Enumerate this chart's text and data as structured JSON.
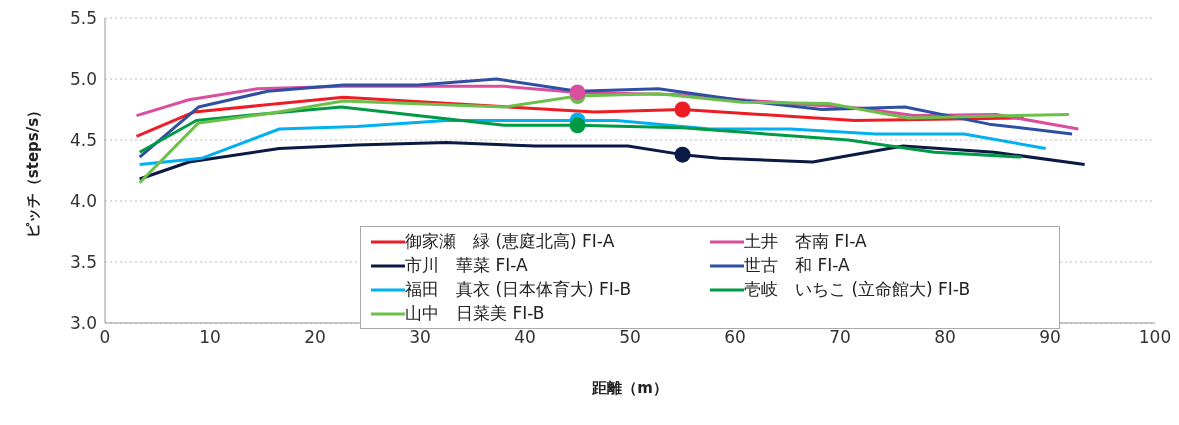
{
  "chart_data": {
    "type": "line",
    "xlabel": "距離（m）",
    "ylabel": "ピッチ（steps/s）",
    "xlim": [
      0,
      100
    ],
    "xticks": [
      0,
      10,
      20,
      30,
      40,
      50,
      60,
      70,
      80,
      90,
      100
    ],
    "ylim": [
      3,
      5.5
    ],
    "yticks": [
      {
        "value": 3,
        "label": "3.0"
      },
      {
        "value": 3.5,
        "label": "3.5"
      },
      {
        "value": 4,
        "label": "4.0"
      },
      {
        "value": 4.5,
        "label": "4.5"
      },
      {
        "value": 5,
        "label": "5.0"
      },
      {
        "value": 5.5,
        "label": "5.5"
      }
    ],
    "grid": "y",
    "legend": "bottom",
    "marker": "none",
    "line_style": "solid",
    "series": [
      {
        "name": "御家瀬　緑 (恵庭北高) FI-A",
        "color": "#ee1c25",
        "x": [
          3,
          8.5,
          22.7,
          46.6,
          55,
          71.4,
          87.5
        ],
        "values": [
          4.53,
          4.73,
          4.85,
          4.73,
          4.75,
          4.66,
          4.68
        ]
      },
      {
        "name": "土井　杏南 FI-A",
        "color": "#d94fa0",
        "x": [
          3,
          8,
          14.5,
          22.7,
          38,
          45,
          55,
          62,
          72,
          77,
          84.9,
          92.7
        ],
        "values": [
          4.7,
          4.83,
          4.92,
          4.94,
          4.94,
          4.89,
          4.87,
          4.82,
          4.76,
          4.7,
          4.71,
          4.59
        ]
      },
      {
        "name": "市川　華菜 FI-A",
        "color": "#0b1a45",
        "x": [
          3.3,
          8,
          16.6,
          24,
          32.5,
          41,
          49.8,
          55,
          58.5,
          67.4,
          76,
          84.7,
          93.3
        ],
        "values": [
          4.18,
          4.32,
          4.43,
          4.46,
          4.48,
          4.45,
          4.45,
          4.38,
          4.35,
          4.32,
          4.45,
          4.4,
          4.3
        ]
      },
      {
        "name": "世古　和 FI-A",
        "color": "#2e4fa3",
        "x": [
          3.3,
          8.9,
          15.5,
          22.7,
          29.8,
          37.3,
          45,
          52.7,
          61,
          68.3,
          76.2,
          84.2,
          92.1
        ],
        "values": [
          4.36,
          4.77,
          4.9,
          4.95,
          4.95,
          5,
          4.9,
          4.92,
          4.82,
          4.75,
          4.77,
          4.63,
          4.55
        ]
      },
      {
        "name": "福田　真衣 (日本体育大) FI-B",
        "color": "#00b0f0",
        "x": [
          3.3,
          9.2,
          16.6,
          24,
          32.5,
          45,
          48.7,
          57.6,
          65.3,
          73.4,
          81.8,
          89.6
        ],
        "values": [
          4.3,
          4.35,
          4.59,
          4.61,
          4.66,
          4.66,
          4.66,
          4.59,
          4.59,
          4.55,
          4.55,
          4.43
        ]
      },
      {
        "name": "壱岐　いちこ (立命館大) FI-B",
        "color": "#009a44",
        "x": [
          3.3,
          8.7,
          15.8,
          22.5,
          38,
          45,
          55,
          70.8,
          79,
          87.3
        ],
        "values": [
          4.4,
          4.66,
          4.72,
          4.77,
          4.62,
          4.62,
          4.6,
          4.5,
          4.4,
          4.36
        ]
      },
      {
        "name": "山中　日菜美 FI-B",
        "color": "#6cc04a",
        "x": [
          3.3,
          8.9,
          15.8,
          22.7,
          38,
          45,
          52.7,
          60.7,
          68.9,
          76.5,
          91.8
        ],
        "values": [
          4.15,
          4.64,
          4.72,
          4.82,
          4.77,
          4.86,
          4.88,
          4.81,
          4.8,
          4.68,
          4.71
        ]
      },
      {
        "type": "scatter",
        "marker": "circle",
        "color": "#6cc04a",
        "x": [
          45
        ],
        "values": [
          4.86
        ]
      },
      {
        "type": "scatter",
        "marker": "circle",
        "color": "#d94fa0",
        "x": [
          45
        ],
        "values": [
          4.89
        ]
      },
      {
        "type": "scatter",
        "marker": "circle",
        "color": "#00b0f0",
        "x": [
          45
        ],
        "values": [
          4.66
        ]
      },
      {
        "type": "scatter",
        "marker": "circle",
        "color": "#009a44",
        "x": [
          45
        ],
        "values": [
          4.62
        ]
      },
      {
        "type": "scatter",
        "marker": "circle",
        "color": "#ee1c25",
        "x": [
          55
        ],
        "values": [
          4.75
        ]
      },
      {
        "type": "scatter",
        "marker": "circle",
        "color": "#0b1a45",
        "x": [
          55
        ],
        "values": [
          4.38
        ]
      }
    ]
  }
}
